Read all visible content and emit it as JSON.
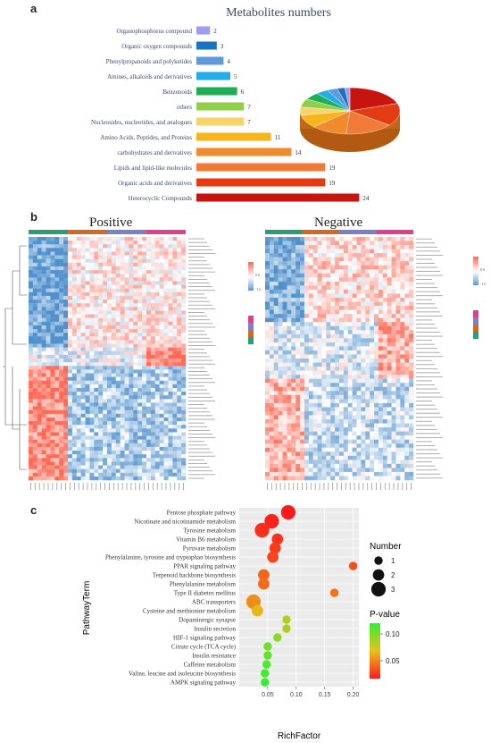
{
  "panels": {
    "a": "a",
    "b": "b",
    "c": "c"
  },
  "chart_data": [
    {
      "type": "bar",
      "orientation": "horizontal",
      "title": "Metabolites numbers",
      "categories": [
        "Organophosphorus compound",
        "Organic oxygen compounds",
        "Phenylpropanoids and polyketides",
        "Amines,   alkaloids and derivatives",
        "Benzenoids",
        "others",
        "Nucleosides, nucleotides, and analogues",
        "Amino Acids, Peptides, and Proteins",
        "carbohydrates and derivatives",
        "Lipids and lipid-like molecules",
        "Organic acids and derivatives",
        "Heterocyclic Compounds"
      ],
      "values": [
        2,
        3,
        4,
        5,
        6,
        7,
        7,
        11,
        14,
        19,
        19,
        24
      ],
      "colors": [
        "#9b9ef0",
        "#1a72c4",
        "#5f9bd8",
        "#22aee8",
        "#1fae55",
        "#8fcf4a",
        "#f7d36a",
        "#f6b51a",
        "#f08a2c",
        "#f07a37",
        "#e33b12",
        "#c8140f"
      ],
      "inset_pie": true
    },
    {
      "type": "heatmap",
      "title": "Positive",
      "legend": {
        "value_ticks": [
          "0.0",
          "-1.0"
        ],
        "class_count": 4
      }
    },
    {
      "type": "heatmap",
      "title": "Negative",
      "legend": {
        "value_ticks": [
          "0.0",
          "-1.0"
        ],
        "class_count": 4
      }
    },
    {
      "type": "scatter",
      "subtype": "bubble",
      "xlabel": "RichFactor",
      "ylabel": "PathwayTerm",
      "xlim": [
        0,
        0.21
      ],
      "xticks": [
        "0.05",
        "0.10",
        "0.15",
        "0.20"
      ],
      "xtick_values": [
        0.05,
        0.1,
        0.15,
        0.2
      ],
      "points": [
        {
          "term": "Pentose phosphate pathway",
          "x": 0.086,
          "size": 3,
          "p": 0.003
        },
        {
          "term": "Nicotinate and nicotinamide metabolism",
          "x": 0.057,
          "size": 3,
          "p": 0.006
        },
        {
          "term": "Tyrosine metabolism",
          "x": 0.04,
          "size": 3,
          "p": 0.01
        },
        {
          "term": "Vitamin B6 metabolism",
          "x": 0.067,
          "size": 2,
          "p": 0.012
        },
        {
          "term": "Pyruvate metabolism",
          "x": 0.063,
          "size": 2,
          "p": 0.015
        },
        {
          "term": "Phenylalanine, tyrosine and tryptophan biosynthesis",
          "x": 0.059,
          "size": 2,
          "p": 0.018
        },
        {
          "term": "PPAR signaling pathway",
          "x": 0.2,
          "size": 1,
          "p": 0.022
        },
        {
          "term": "Terpenoid backbone biosynthesis",
          "x": 0.043,
          "size": 2,
          "p": 0.03
        },
        {
          "term": "Phenylalanine metabolism",
          "x": 0.043,
          "size": 2,
          "p": 0.032
        },
        {
          "term": "Type II diabetes mellitus",
          "x": 0.167,
          "size": 1,
          "p": 0.035
        },
        {
          "term": "ABC transporters",
          "x": 0.025,
          "size": 3,
          "p": 0.045
        },
        {
          "term": "Cysteine and methionine metabolism",
          "x": 0.032,
          "size": 2,
          "p": 0.06
        },
        {
          "term": "Dopaminergic synapse",
          "x": 0.083,
          "size": 1,
          "p": 0.08
        },
        {
          "term": "Insulin secretion",
          "x": 0.083,
          "size": 1,
          "p": 0.082
        },
        {
          "term": "HIF-1 signaling pathway",
          "x": 0.067,
          "size": 1,
          "p": 0.095
        },
        {
          "term": "Citrate cycle (TCA cycle)",
          "x": 0.05,
          "size": 1,
          "p": 0.105
        },
        {
          "term": "Insulin resistance",
          "x": 0.05,
          "size": 1,
          "p": 0.11
        },
        {
          "term": "Caffeine metabolism",
          "x": 0.048,
          "size": 1,
          "p": 0.115
        },
        {
          "term": "Valine, leucine and isoleucine biosynthesis",
          "x": 0.045,
          "size": 1,
          "p": 0.12
        },
        {
          "term": "AMPK signaling pathway",
          "x": 0.045,
          "size": 1,
          "p": 0.125
        }
      ],
      "size_legend": {
        "title": "Number",
        "labels": [
          "1",
          "2",
          "3"
        ]
      },
      "color_legend": {
        "title": "P-value",
        "ticks": [
          "0.10",
          "0.05"
        ],
        "tick_values": [
          0.1,
          0.05
        ],
        "low_color": "#ff1a1a",
        "high_color": "#33ee33"
      },
      "grid": true,
      "background": "#ebebeb"
    }
  ]
}
